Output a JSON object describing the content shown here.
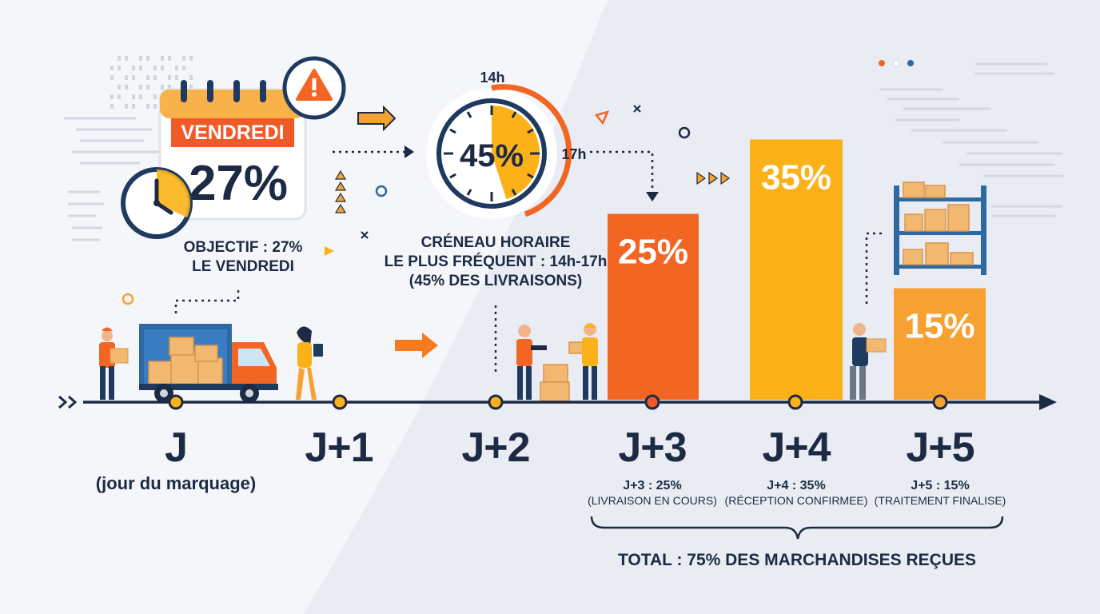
{
  "colors": {
    "navy": "#1f3a5f",
    "dark": "#1d2a44",
    "orange": "#f26522",
    "amber": "#fbb117",
    "light_orange": "#f7a132",
    "red_orange": "#f05a28",
    "cream": "#f3c487"
  },
  "calendar": {
    "day_label": "VENDREDI",
    "value": "27%",
    "icons": [
      "calendar-icon",
      "alert-icon",
      "clock-icon"
    ]
  },
  "objective": {
    "line1": "OBJECTIF : 27%",
    "line2": "LE VENDREDI"
  },
  "time_gauge": {
    "value": "45%",
    "start_label": "14h",
    "end_label": "17h",
    "fraction": 0.45
  },
  "slot": {
    "line1": "CRÉNEAU HORAIRE",
    "line2": "LE PLUS FRÉQUENT : 14h-17h",
    "line3": "(45% DES LIVRAISONS)"
  },
  "timeline": {
    "days": [
      {
        "label": "J",
        "sub": "(jour du marquage)"
      },
      {
        "label": "J+1"
      },
      {
        "label": "J+2"
      },
      {
        "label": "J+3",
        "detail1": "J+3 : 25%",
        "detail2": "(LIVRAISON EN COURS)"
      },
      {
        "label": "J+4",
        "detail1": "J+4 : 35%",
        "detail2": "(RÉCEPTION CONFIRMEE)"
      },
      {
        "label": "J+5",
        "detail1": "J+5 : 15%",
        "detail2": "(TRAITEMENT FINALISE)"
      }
    ]
  },
  "chart_data": {
    "type": "bar",
    "categories": [
      "J+3",
      "J+4",
      "J+5"
    ],
    "values": [
      25,
      35,
      15
    ],
    "value_labels": [
      "25%",
      "35%",
      "15%"
    ],
    "bar_colors": [
      "#f26522",
      "#fbb117",
      "#f7a132"
    ]
  },
  "total": {
    "label": "TOTAL : 75% DES MARCHANDISES REÇUES"
  }
}
